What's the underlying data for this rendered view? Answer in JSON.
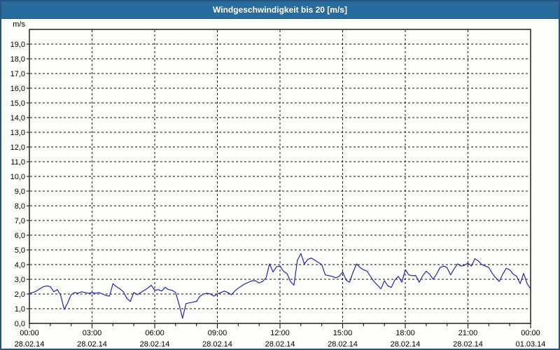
{
  "header": {
    "title": "Windgeschwindigkeit bis 20 [m/s]"
  },
  "colors": {
    "titlebar_bg": "#2a6b9d",
    "titlebar_text": "#ffffff",
    "window_border": "#24567f",
    "background": "#fcfefa",
    "grid": "#111111",
    "axis": "#000000",
    "line": "#2323b4"
  },
  "chart_data": {
    "type": "line",
    "title": "Windgeschwindigkeit bis 20 [m/s]",
    "unit_label": "m/s",
    "ylim": [
      0,
      20
    ],
    "ytick_step": 1,
    "ytick_label_max": 19,
    "decimal_separator": ",",
    "x_hours_range": [
      0,
      24
    ],
    "major_tick_hours": 3,
    "minor_tick_hours": 1,
    "grid": "dashed",
    "legend_position": "none",
    "xticks": [
      {
        "time": "00:00",
        "date": "28.02.14"
      },
      {
        "time": "03:00",
        "date": "28.02.14"
      },
      {
        "time": "06:00",
        "date": "28.02.14"
      },
      {
        "time": "09:00",
        "date": "28.02.14"
      },
      {
        "time": "12:00",
        "date": "28.02.14"
      },
      {
        "time": "15:00",
        "date": "28.02.14"
      },
      {
        "time": "18:00",
        "date": "28.02.14"
      },
      {
        "time": "21:00",
        "date": "28.02.14"
      },
      {
        "time": "00:00",
        "date": "01.03.14"
      }
    ],
    "series": [
      {
        "name": "Windgeschwindigkeit",
        "color": "#2323b4",
        "interval_minutes": 10,
        "start_time": "00:00",
        "values": [
          2.05,
          2.1,
          2.2,
          2.35,
          2.5,
          2.55,
          2.5,
          2.15,
          2.3,
          1.9,
          0.95,
          1.4,
          1.95,
          2.1,
          2.05,
          2.15,
          2.1,
          2.05,
          2.1,
          2.05,
          2.1,
          2.0,
          1.9,
          1.85,
          2.7,
          2.5,
          2.35,
          2.15,
          1.7,
          1.5,
          2.1,
          1.95,
          2.1,
          2.25,
          2.4,
          2.6,
          2.25,
          2.3,
          2.2,
          2.45,
          2.3,
          2.25,
          2.1,
          1.3,
          0.35,
          1.35,
          1.4,
          1.45,
          1.5,
          1.85,
          2.0,
          2.05,
          2.0,
          1.85,
          2.0,
          2.1,
          2.2,
          2.1,
          1.95,
          2.2,
          2.4,
          2.55,
          2.7,
          2.8,
          2.9,
          2.9,
          2.75,
          2.85,
          3.1,
          4.05,
          3.5,
          3.85,
          3.9,
          3.55,
          3.4,
          2.85,
          2.6,
          4.3,
          4.75,
          4.05,
          4.35,
          4.45,
          4.3,
          4.15,
          4.0,
          3.3,
          3.25,
          3.2,
          3.1,
          3.2,
          3.5,
          2.95,
          2.8,
          3.5,
          4.05,
          3.8,
          3.65,
          3.55,
          3.2,
          2.85,
          2.6,
          2.35,
          2.9,
          2.55,
          2.45,
          2.95,
          3.2,
          2.8,
          3.65,
          3.3,
          3.25,
          3.25,
          2.8,
          3.25,
          3.55,
          3.35,
          3.0,
          3.35,
          3.8,
          3.9,
          3.8,
          3.3,
          3.7,
          4.05,
          3.9,
          3.95,
          4.1,
          3.9,
          4.4,
          4.25,
          4.0,
          3.9,
          3.8,
          3.4,
          3.1,
          2.85,
          3.35,
          3.75,
          3.65,
          3.35,
          3.2,
          2.7,
          3.4,
          2.7,
          2.35
        ]
      }
    ]
  }
}
